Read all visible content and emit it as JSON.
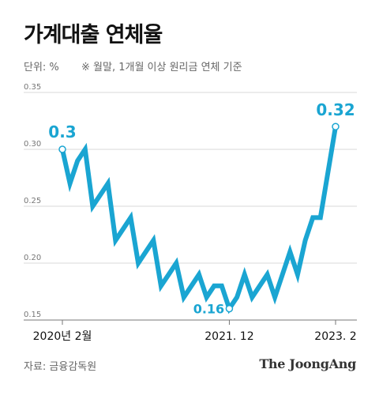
{
  "title": "가계대출 연체율",
  "unit": "단위: %",
  "note": "※ 월말, 1개월 이상 원리금 연체 기준",
  "source": "자료: 금융감독원",
  "logo": "The JoongAng",
  "colors": {
    "line": "#1aa5d2",
    "grid": "#d9d9d9",
    "axis": "#777777"
  },
  "chart_data": {
    "type": "line",
    "title": "가계대출 연체율",
    "ylabel": "",
    "xlabel": "",
    "ylim": [
      0.15,
      0.35
    ],
    "yticks": [
      "0.35",
      "0.30",
      "0.25",
      "0.20",
      "0.15"
    ],
    "x_ticks": [
      {
        "index": 0,
        "label": "2020년 2월"
      },
      {
        "index": 22,
        "label": "2021. 12"
      },
      {
        "index": 36,
        "label": "2023. 2"
      }
    ],
    "series": [
      {
        "values": [
          0.3,
          0.27,
          0.29,
          0.3,
          0.25,
          0.26,
          0.27,
          0.22,
          0.23,
          0.24,
          0.2,
          0.21,
          0.22,
          0.18,
          0.19,
          0.2,
          0.17,
          0.18,
          0.19,
          0.17,
          0.18,
          0.18,
          0.16,
          0.17,
          0.19,
          0.17,
          0.18,
          0.19,
          0.17,
          0.19,
          0.21,
          0.19,
          0.22,
          0.24,
          0.24,
          0.28,
          0.32
        ]
      }
    ],
    "callouts": [
      {
        "index": 0,
        "label": "0.3"
      },
      {
        "index": 22,
        "label": "0.16"
      },
      {
        "index": 36,
        "label": "0.32"
      }
    ]
  }
}
